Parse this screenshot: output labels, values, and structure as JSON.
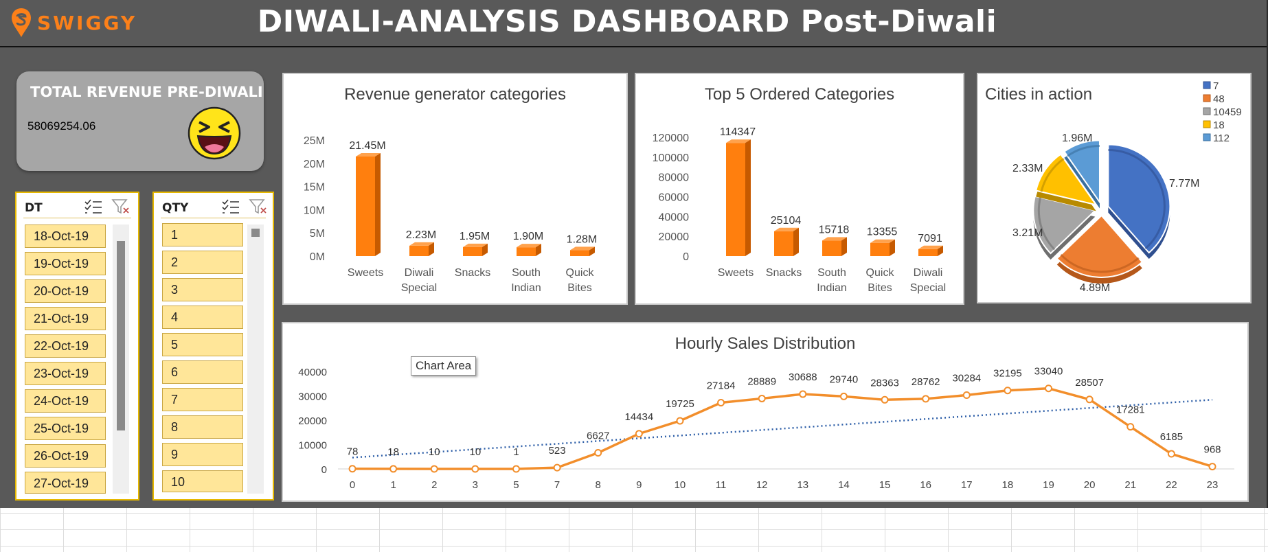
{
  "header": {
    "brand": "SWIGGY",
    "title": "DIWALI-ANALYSIS DASHBOARD Post-Diwali"
  },
  "revenue_card": {
    "title": "TOTAL REVENUE PRE-DIWALI",
    "value": "58069254.06"
  },
  "slicer_dt": {
    "title": "DT",
    "items": [
      "18-Oct-19",
      "19-Oct-19",
      "20-Oct-19",
      "21-Oct-19",
      "22-Oct-19",
      "23-Oct-19",
      "24-Oct-19",
      "25-Oct-19",
      "26-Oct-19",
      "27-Oct-19"
    ]
  },
  "slicer_qty": {
    "title": "QTY",
    "items": [
      "1",
      "2",
      "3",
      "4",
      "5",
      "6",
      "7",
      "8",
      "9",
      "10"
    ]
  },
  "tooltip": "Chart Area",
  "colors": {
    "background": "#595959",
    "accent": "#fc8019",
    "bar": "#ff7f0e",
    "trend": "#2e5fa8",
    "slicer_item": "#ffe699"
  },
  "chart_data": [
    {
      "id": "revenue",
      "type": "bar",
      "title": "Revenue generator categories",
      "categories": [
        [
          "Sweets"
        ],
        [
          "Diwali",
          "Special"
        ],
        [
          "Snacks"
        ],
        [
          "South",
          "Indian"
        ],
        [
          "Quick",
          "Bites"
        ]
      ],
      "values": [
        21.45,
        2.23,
        1.95,
        1.9,
        1.28
      ],
      "value_labels": [
        "21.45M",
        "2.23M",
        "1.95M",
        "1.90M",
        "1.28M"
      ],
      "yticks": [
        "0M",
        "5M",
        "10M",
        "15M",
        "20M",
        "25M"
      ],
      "ylim": [
        0,
        25
      ]
    },
    {
      "id": "orders",
      "type": "bar",
      "title": "Top 5 Ordered Categories",
      "categories": [
        [
          "Sweets"
        ],
        [
          "Snacks"
        ],
        [
          "South",
          "Indian"
        ],
        [
          "Quick",
          "Bites"
        ],
        [
          "Diwali",
          "Special"
        ]
      ],
      "values": [
        114347,
        25104,
        15718,
        13355,
        7091
      ],
      "value_labels": [
        "114347",
        "25104",
        "15718",
        "13355",
        "7091"
      ],
      "yticks": [
        "0",
        "20000",
        "40000",
        "60000",
        "80000",
        "100000",
        "120000"
      ],
      "ylim": [
        0,
        120000
      ]
    },
    {
      "id": "cities",
      "type": "pie",
      "title": "Cities in action",
      "legend": [
        "7",
        "48",
        "10459",
        "18",
        "112"
      ],
      "values": [
        7.77,
        4.89,
        3.21,
        2.33,
        1.96
      ],
      "value_labels": [
        "7.77M",
        "4.89M",
        "3.21M",
        "2.33M",
        "1.96M"
      ],
      "colors": [
        "#4472c4",
        "#ed7d31",
        "#a5a5a5",
        "#ffc000",
        "#5b9bd5"
      ],
      "legend_position": "top-right"
    },
    {
      "id": "hourly",
      "type": "line",
      "title": "Hourly Sales Distribution",
      "x": [
        "0",
        "1",
        "2",
        "3",
        "5",
        "7",
        "8",
        "9",
        "10",
        "11",
        "12",
        "13",
        "14",
        "15",
        "16",
        "17",
        "18",
        "19",
        "20",
        "21",
        "22",
        "23"
      ],
      "values": [
        78,
        18,
        10,
        10,
        1,
        523,
        6627,
        14434,
        19725,
        27184,
        28889,
        30688,
        29740,
        28363,
        28762,
        30284,
        32195,
        33040,
        28507,
        17281,
        6185,
        968
      ],
      "yticks": [
        "0",
        "10000",
        "20000",
        "30000",
        "40000"
      ],
      "ylim": [
        0,
        40000
      ],
      "trendline": "linear"
    }
  ]
}
